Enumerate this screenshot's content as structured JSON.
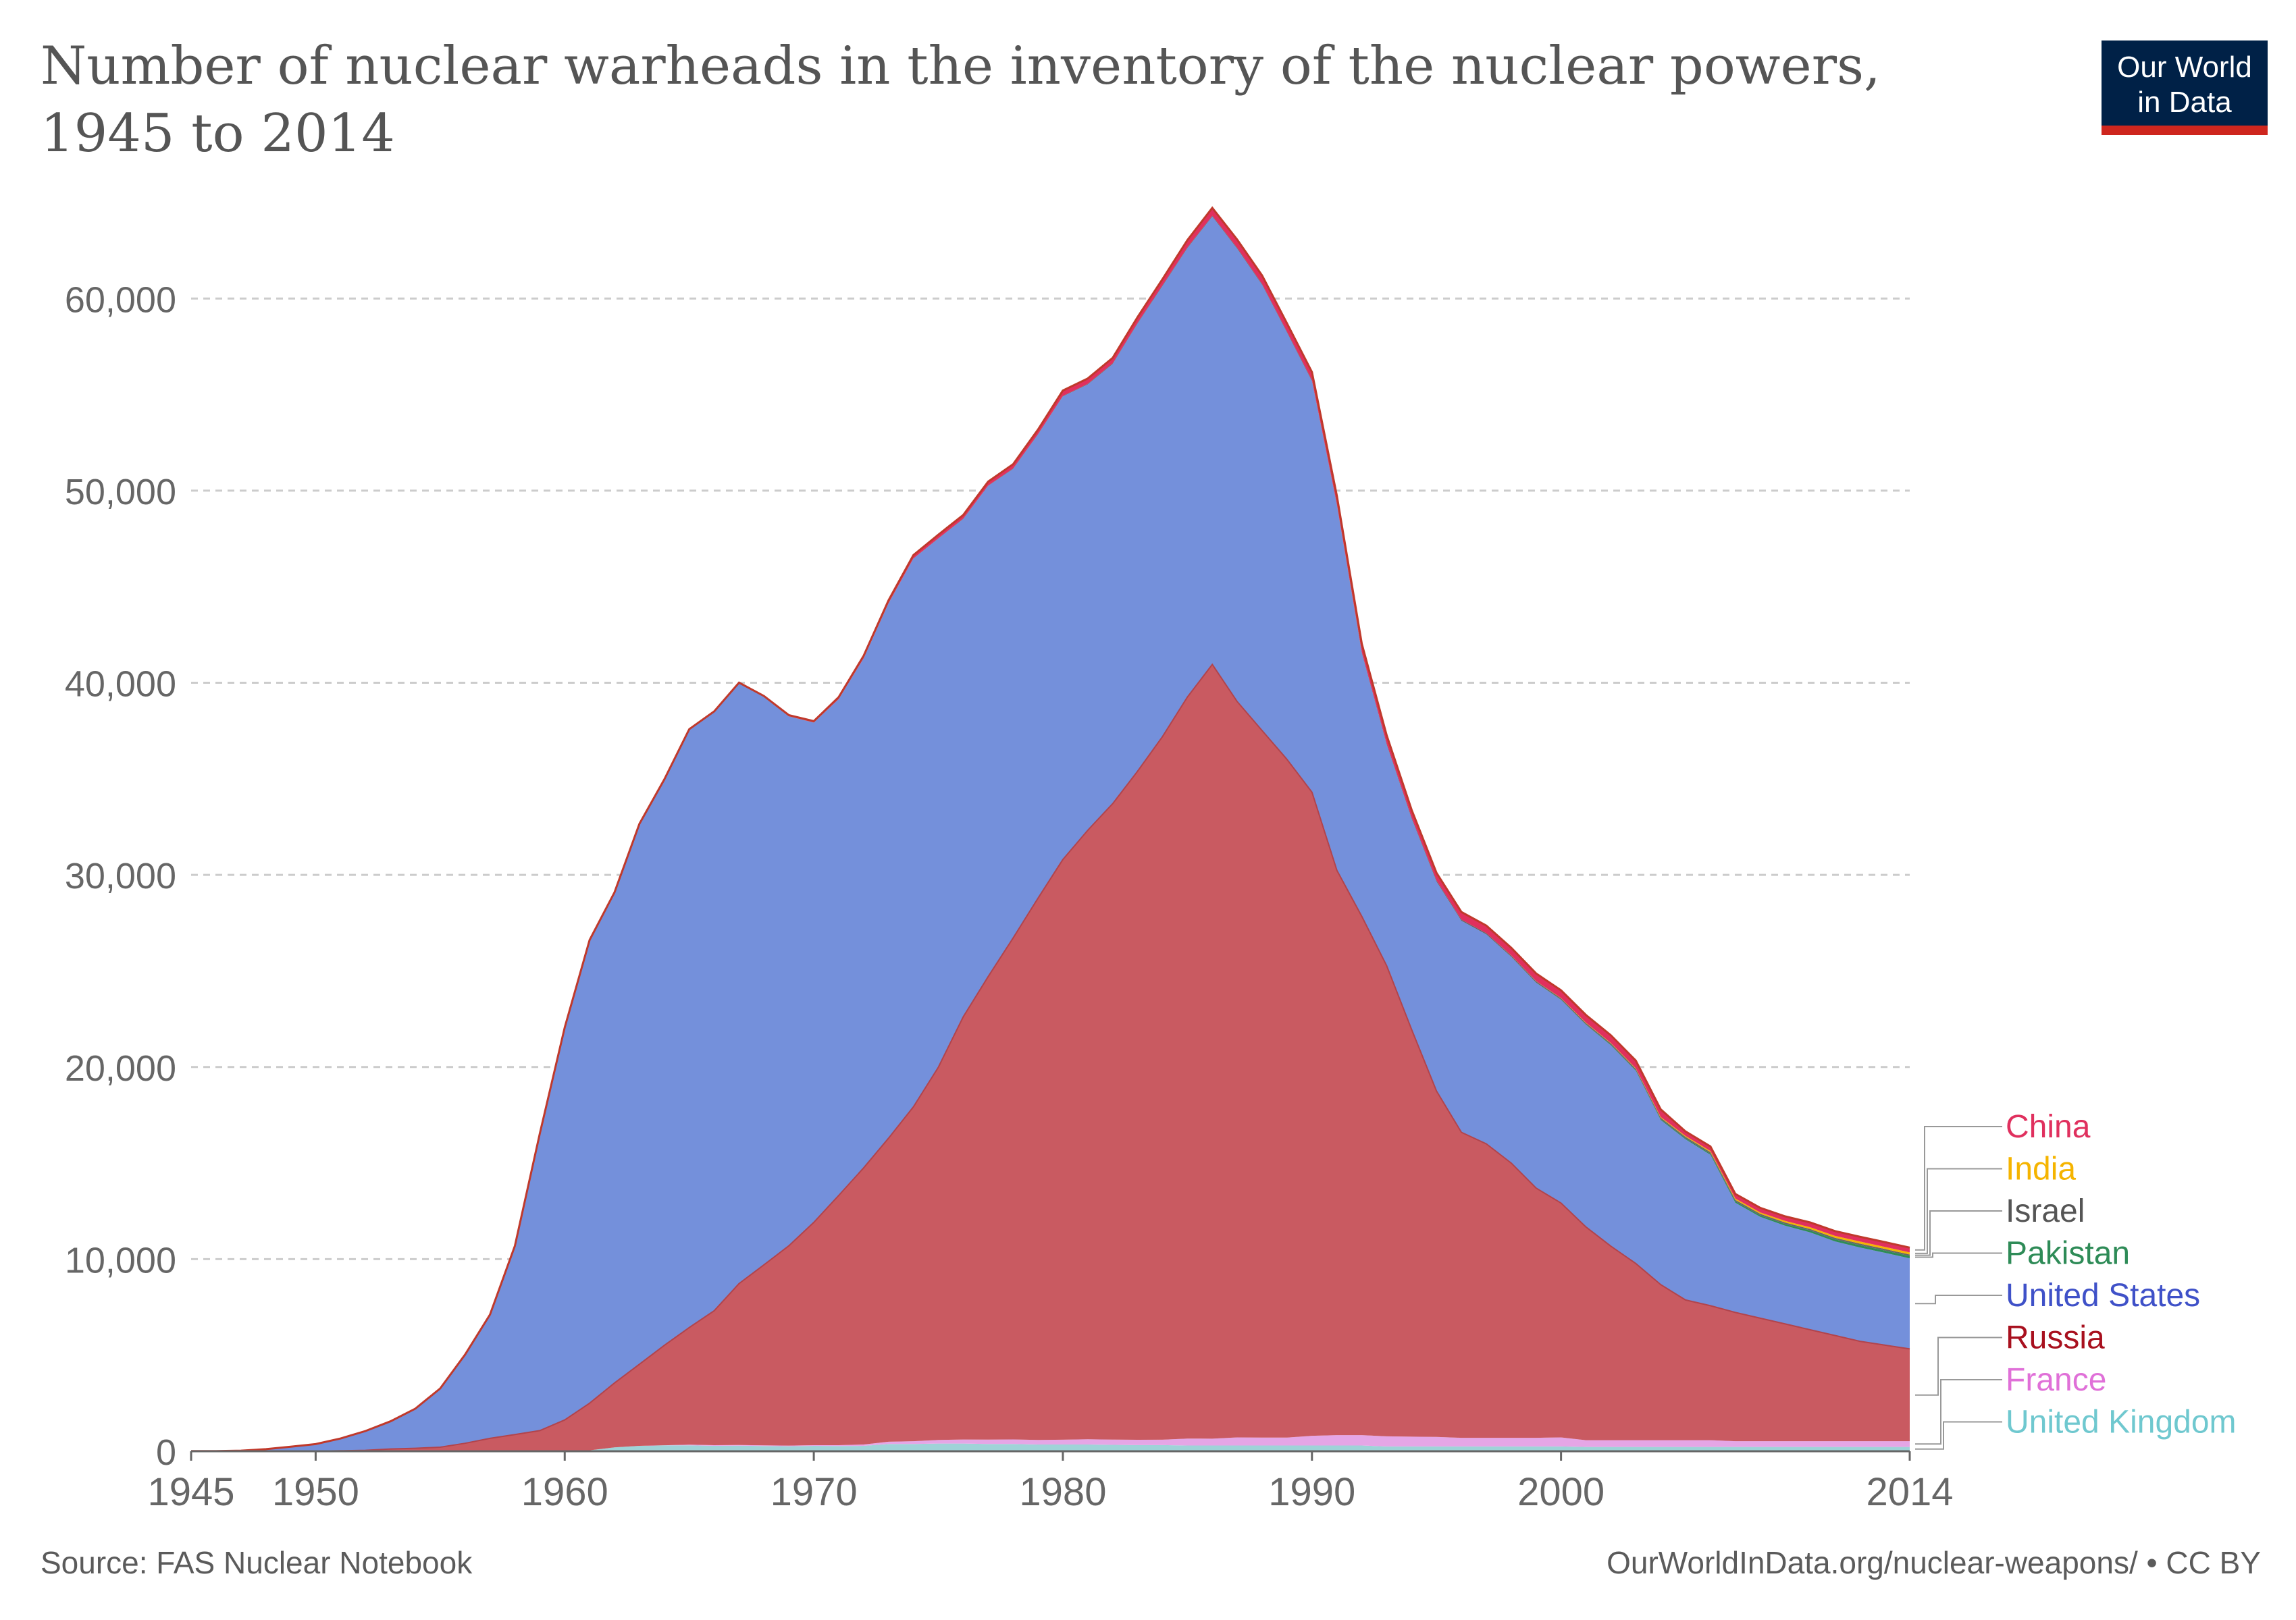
{
  "header": {
    "title": "Number of nuclear warheads in the inventory of the nuclear powers, 1945 to 2014",
    "logo_line1": "Our World",
    "logo_line2": "in Data"
  },
  "footer": {
    "source": "Source: FAS Nuclear Notebook",
    "license": "OurWorldInData.org/nuclear-weapons/ • CC BY"
  },
  "colors": {
    "united_states": "#7490db",
    "russia": "#c95a61",
    "france": "#e5a6e6",
    "united_kingdom": "#9fd3d8",
    "china": "#e0305e",
    "india": "#f5b400",
    "israel": "#666666",
    "pakistan": "#2e8b57",
    "grid": "#cccccc",
    "axis_text": "#666666"
  },
  "chart_data": {
    "type": "area",
    "stacked": true,
    "title": "Number of nuclear warheads in the inventory of the nuclear powers, 1945 to 2014",
    "xlabel": "",
    "ylabel": "",
    "xlim": [
      1945,
      2014
    ],
    "ylim": [
      0,
      65000
    ],
    "x_ticks": [
      "1945",
      "1950",
      "1960",
      "1970",
      "1980",
      "1990",
      "2000",
      "2014"
    ],
    "y_ticks": [
      "0",
      "10,000",
      "20,000",
      "30,000",
      "40,000",
      "50,000",
      "60,000"
    ],
    "grid": "horizontal dashed",
    "legend_position": "right (end labels)",
    "x": [
      1945,
      1946,
      1947,
      1948,
      1949,
      1950,
      1951,
      1952,
      1953,
      1954,
      1955,
      1956,
      1957,
      1958,
      1959,
      1960,
      1961,
      1962,
      1963,
      1964,
      1965,
      1966,
      1967,
      1968,
      1969,
      1970,
      1971,
      1972,
      1973,
      1974,
      1975,
      1976,
      1977,
      1978,
      1979,
      1980,
      1981,
      1982,
      1983,
      1984,
      1985,
      1986,
      1987,
      1988,
      1989,
      1990,
      1991,
      1992,
      1993,
      1994,
      1995,
      1996,
      1997,
      1998,
      1999,
      2000,
      2001,
      2002,
      2003,
      2004,
      2005,
      2006,
      2007,
      2008,
      2009,
      2010,
      2011,
      2012,
      2013,
      2014
    ],
    "series": [
      {
        "name": "United Kingdom",
        "color_key": "united_kingdom",
        "values": [
          0,
          0,
          0,
          0,
          0,
          0,
          0,
          0,
          1,
          5,
          10,
          15,
          20,
          22,
          25,
          30,
          50,
          205,
          280,
          310,
          310,
          280,
          290,
          270,
          260,
          280,
          270,
          280,
          380,
          380,
          400,
          400,
          380,
          380,
          350,
          350,
          350,
          335,
          320,
          320,
          300,
          300,
          300,
          300,
          300,
          300,
          300,
          300,
          250,
          250,
          250,
          250,
          250,
          250,
          250,
          250,
          225,
          225,
          225,
          225,
          225,
          225,
          225,
          225,
          225,
          225,
          225,
          225,
          225,
          225
        ]
      },
      {
        "name": "France",
        "color_key": "france",
        "values": [
          0,
          0,
          0,
          0,
          0,
          0,
          0,
          0,
          0,
          0,
          0,
          0,
          0,
          0,
          0,
          0,
          0,
          0,
          0,
          4,
          32,
          36,
          36,
          36,
          36,
          36,
          45,
          70,
          116,
          145,
          188,
          212,
          228,
          235,
          235,
          250,
          274,
          274,
          279,
          280,
          360,
          355,
          420,
          410,
          410,
          505,
          540,
          540,
          525,
          510,
          500,
          450,
          450,
          450,
          450,
          470,
          350,
          350,
          350,
          350,
          350,
          350,
          300,
          300,
          300,
          300,
          300,
          300,
          300,
          300
        ]
      },
      {
        "name": "Russia",
        "color_key": "russia",
        "values": [
          0,
          0,
          0,
          0,
          1,
          5,
          25,
          50,
          120,
          150,
          200,
          400,
          650,
          850,
          1050,
          1600,
          2450,
          3350,
          4250,
          5200,
          6100,
          7000,
          8400,
          9400,
          10400,
          11600,
          13000,
          14400,
          15800,
          17400,
          19400,
          22000,
          24100,
          26100,
          28200,
          30200,
          31700,
          33100,
          34800,
          36600,
          38600,
          40300,
          38300,
          36800,
          35300,
          33500,
          29400,
          27000,
          24500,
          21200,
          18000,
          15900,
          15300,
          14300,
          13000,
          12200,
          11100,
          10100,
          9200,
          8100,
          7300,
          7000,
          6700,
          6400,
          6100,
          5800,
          5500,
          5200,
          5000,
          4800
        ]
      },
      {
        "name": "United States",
        "color_key": "united_states",
        "values": [
          6,
          11,
          32,
          110,
          235,
          369,
          640,
          1005,
          1436,
          2063,
          3057,
          4618,
          6444,
          9822,
          15468,
          20434,
          24111,
          25540,
          28133,
          29463,
          31139,
          31175,
          31255,
          29561,
          27552,
          26008,
          25830,
          26516,
          27835,
          28537,
          27519,
          25914,
          25542,
          24418,
          24138,
          24104,
          23208,
          22886,
          23305,
          23459,
          23368,
          23317,
          23575,
          23205,
          22217,
          21392,
          19008,
          13708,
          11511,
          10979,
          10904,
          11011,
          10903,
          10732,
          10685,
          10577,
          10526,
          10457,
          10027,
          8570,
          8360,
          7853,
          5709,
          5273,
          5113,
          5066,
          4897,
          4881,
          4804,
          4717
        ]
      },
      {
        "name": "Pakistan",
        "color_key": "pakistan",
        "values": [
          0,
          0,
          0,
          0,
          0,
          0,
          0,
          0,
          0,
          0,
          0,
          0,
          0,
          0,
          0,
          0,
          0,
          0,
          0,
          0,
          0,
          0,
          0,
          0,
          0,
          0,
          0,
          0,
          0,
          0,
          0,
          0,
          0,
          0,
          0,
          0,
          0,
          0,
          0,
          0,
          0,
          0,
          0,
          0,
          0,
          0,
          0,
          0,
          0,
          0,
          0,
          0,
          0,
          5,
          10,
          15,
          20,
          25,
          30,
          40,
          50,
          60,
          70,
          80,
          90,
          100,
          110,
          120,
          120,
          120
        ]
      },
      {
        "name": "Israel",
        "color_key": "israel",
        "values": [
          0,
          0,
          0,
          0,
          0,
          0,
          0,
          0,
          0,
          0,
          0,
          0,
          0,
          0,
          0,
          0,
          0,
          0,
          0,
          0,
          0,
          0,
          2,
          4,
          6,
          8,
          10,
          12,
          14,
          16,
          18,
          20,
          22,
          24,
          26,
          28,
          30,
          32,
          34,
          36,
          38,
          40,
          42,
          44,
          46,
          48,
          50,
          52,
          54,
          56,
          58,
          60,
          62,
          64,
          66,
          68,
          70,
          72,
          74,
          76,
          78,
          80,
          80,
          80,
          80,
          80,
          80,
          80,
          80,
          80
        ]
      },
      {
        "name": "India",
        "color_key": "india",
        "values": [
          0,
          0,
          0,
          0,
          0,
          0,
          0,
          0,
          0,
          0,
          0,
          0,
          0,
          0,
          0,
          0,
          0,
          0,
          0,
          0,
          0,
          0,
          0,
          0,
          0,
          0,
          0,
          0,
          0,
          0,
          0,
          0,
          0,
          0,
          0,
          0,
          0,
          0,
          0,
          0,
          0,
          0,
          0,
          0,
          0,
          0,
          0,
          0,
          0,
          0,
          0,
          0,
          0,
          5,
          10,
          15,
          20,
          25,
          30,
          40,
          50,
          60,
          70,
          70,
          80,
          90,
          100,
          110,
          110,
          110
        ]
      },
      {
        "name": "China",
        "color_key": "china",
        "values": [
          0,
          0,
          0,
          0,
          0,
          0,
          0,
          0,
          0,
          0,
          0,
          0,
          0,
          0,
          0,
          0,
          0,
          0,
          0,
          1,
          5,
          20,
          25,
          40,
          60,
          75,
          100,
          130,
          150,
          170,
          185,
          190,
          200,
          220,
          230,
          280,
          280,
          290,
          300,
          320,
          380,
          410,
          430,
          440,
          430,
          430,
          435,
          435,
          435,
          400,
          400,
          400,
          400,
          400,
          400,
          400,
          400,
          400,
          400,
          400,
          235,
          235,
          240,
          240,
          240,
          250,
          250,
          250,
          250,
          250
        ]
      }
    ]
  }
}
